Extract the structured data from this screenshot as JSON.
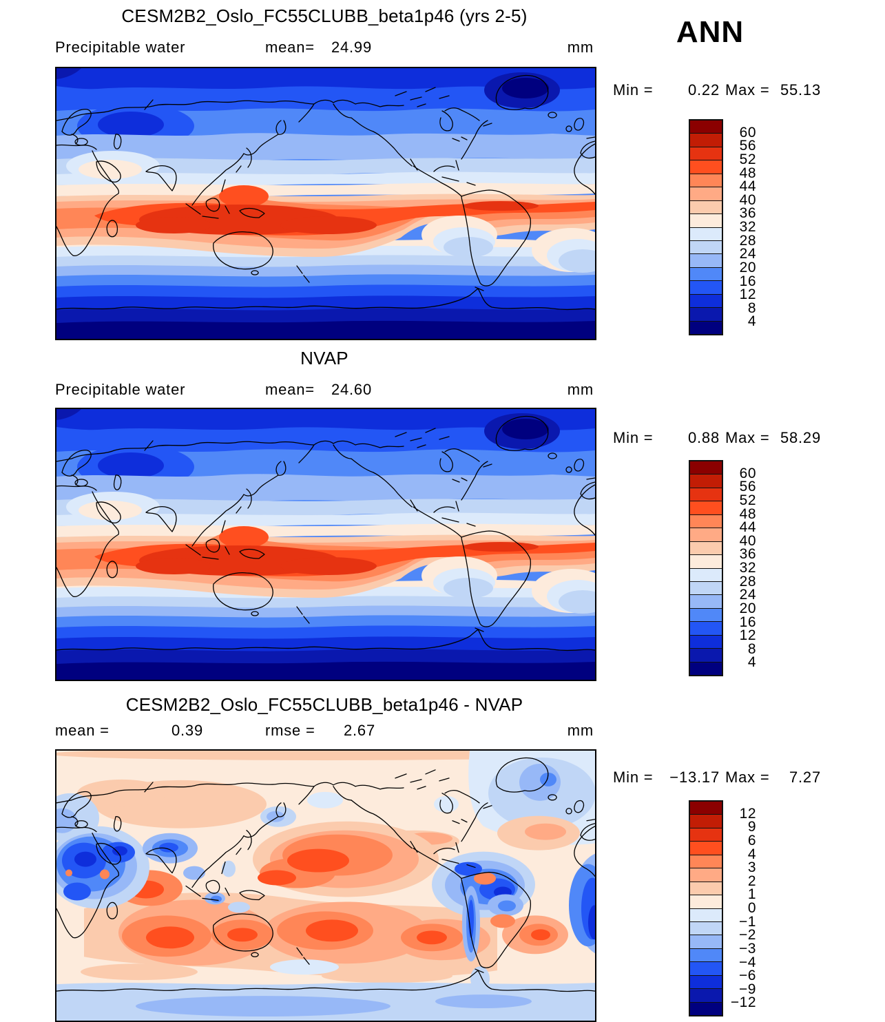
{
  "figure": {
    "season": "ANN"
  },
  "panels": [
    {
      "title": "CESM2B2_Oslo_FC55CLUBB_beta1p46 (yrs 2-5)",
      "field_label": "Precipitable water",
      "mean_label": "mean=",
      "mean_value": "24.99",
      "units": "mm",
      "min_label": "Min =",
      "min_value": "0.22",
      "max_label": "Max =",
      "max_value": "55.13",
      "colorbar": {
        "colors": [
          "#8b0000",
          "#c21d05",
          "#e63311",
          "#ff4f1f",
          "#ff8657",
          "#ffaa85",
          "#fbcbad",
          "#fdebdc",
          "#dceafb",
          "#c0d6f6",
          "#97b8f7",
          "#5088f8",
          "#2356f5",
          "#0e2edb",
          "#0a18ae",
          "#00007f"
        ],
        "labels": [
          "60",
          "56",
          "52",
          "48",
          "44",
          "40",
          "36",
          "32",
          "28",
          "24",
          "20",
          "16",
          "12",
          "8",
          "4"
        ]
      }
    },
    {
      "title": "NVAP",
      "field_label": "Precipitable water",
      "mean_label": "mean=",
      "mean_value": "24.60",
      "units": "mm",
      "min_label": "Min =",
      "min_value": "0.88",
      "max_label": "Max =",
      "max_value": "58.29",
      "colorbar": {
        "colors": [
          "#8b0000",
          "#c21d05",
          "#e63311",
          "#ff4f1f",
          "#ff8657",
          "#ffaa85",
          "#fbcbad",
          "#fdebdc",
          "#dceafb",
          "#c0d6f6",
          "#97b8f7",
          "#5088f8",
          "#2356f5",
          "#0e2edb",
          "#0a18ae",
          "#00007f"
        ],
        "labels": [
          "60",
          "56",
          "52",
          "48",
          "44",
          "40",
          "36",
          "32",
          "28",
          "24",
          "20",
          "16",
          "12",
          "8",
          "4"
        ]
      }
    },
    {
      "title": "CESM2B2_Oslo_FC55CLUBB_beta1p46 - NVAP",
      "mean_label": "mean =",
      "mean_value": "0.39",
      "rmse_label": "rmse =",
      "rmse_value": "2.67",
      "units": "mm",
      "min_label": "Min =",
      "min_value": "−13.17",
      "max_label": "Max =",
      "max_value": "7.27",
      "colorbar": {
        "colors": [
          "#8b0000",
          "#c21d05",
          "#e63311",
          "#ff4f1f",
          "#ff8657",
          "#ffaa85",
          "#fbcbad",
          "#fdebdc",
          "#dceafb",
          "#c0d6f6",
          "#97b8f7",
          "#5088f8",
          "#2356f5",
          "#0e2edb",
          "#0a18ae",
          "#00007f"
        ],
        "labels": [
          "12",
          "9",
          "6",
          "4",
          "3",
          "2",
          "1",
          "0",
          "−1",
          "−2",
          "−3",
          "−4",
          "−6",
          "−9",
          "−12"
        ]
      }
    }
  ],
  "chart_data": [
    {
      "type": "heatmap",
      "subtype": "filled-contour global map",
      "title": "CESM2B2_Oslo_FC55CLUBB_beta1p46 (yrs 2-5)",
      "variable": "Precipitable water",
      "season": "ANN",
      "units": "mm",
      "stats": {
        "mean": 24.99,
        "min": 0.22,
        "max": 55.13
      },
      "contour_levels": [
        4,
        8,
        12,
        16,
        20,
        24,
        28,
        32,
        36,
        40,
        44,
        48,
        52,
        56,
        60
      ],
      "palette_top_to_bottom": [
        "#8b0000",
        "#c21d05",
        "#e63311",
        "#ff4f1f",
        "#ff8657",
        "#ffaa85",
        "#fbcbad",
        "#fdebdc",
        "#dceafb",
        "#c0d6f6",
        "#97b8f7",
        "#5088f8",
        "#2356f5",
        "#0e2edb",
        "#0a18ae",
        "#00007f"
      ],
      "legend_position": "right",
      "description": "High values (orange/red, >36 mm) in a wavy tropical band peaking over the Indian Ocean and western Pacific; low values (blue, <16 mm) at high latitudes with darkest minima over Greenland, central Asia and Antarctica."
    },
    {
      "type": "heatmap",
      "subtype": "filled-contour global map",
      "title": "NVAP",
      "variable": "Precipitable water",
      "season": "ANN",
      "units": "mm",
      "stats": {
        "mean": 24.6,
        "min": 0.88,
        "max": 58.29
      },
      "contour_levels": [
        4,
        8,
        12,
        16,
        20,
        24,
        28,
        32,
        36,
        40,
        44,
        48,
        52,
        56,
        60
      ],
      "palette_top_to_bottom": [
        "#8b0000",
        "#c21d05",
        "#e63311",
        "#ff4f1f",
        "#ff8657",
        "#ffaa85",
        "#fbcbad",
        "#fdebdc",
        "#dceafb",
        "#c0d6f6",
        "#97b8f7",
        "#5088f8",
        "#2356f5",
        "#0e2edb",
        "#0a18ae",
        "#00007f"
      ],
      "legend_position": "right",
      "description": "Observed precipitable water with same zonal structure as the model panel: tropical maximum band, polar minima."
    },
    {
      "type": "heatmap",
      "subtype": "filled-contour global difference map",
      "title": "CESM2B2_Oslo_FC55CLUBB_beta1p46 - NVAP",
      "variable": "Precipitable water difference",
      "season": "ANN",
      "units": "mm",
      "stats": {
        "mean": 0.39,
        "rmse": 2.67,
        "min": -13.17,
        "max": 7.27
      },
      "contour_levels": [
        -12,
        -9,
        -6,
        -4,
        -3,
        -2,
        -1,
        0,
        1,
        2,
        3,
        4,
        6,
        9,
        12
      ],
      "palette_top_to_bottom": [
        "#8b0000",
        "#c21d05",
        "#e63311",
        "#ff4f1f",
        "#ff8657",
        "#ffaa85",
        "#fbcbad",
        "#fdebdc",
        "#dceafb",
        "#c0d6f6",
        "#97b8f7",
        "#5088f8",
        "#2356f5",
        "#0e2edb",
        "#0a18ae",
        "#00007f"
      ],
      "legend_position": "right",
      "description": "Mostly small positive bias (pale peach); strong wet bias (red) over the North Pacific and tropical oceans/Australia; strong dry bias (blue) over North Africa, the Middle East, Tibet, the Caribbean and tropical Atlantic; weak negative band around Antarctica."
    }
  ]
}
